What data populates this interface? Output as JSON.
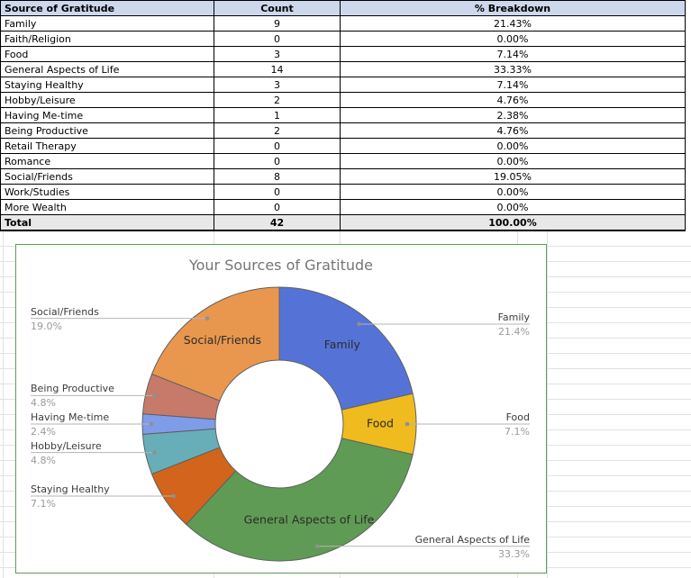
{
  "table": {
    "headers": [
      "Source of Gratitude",
      "Count",
      "% Breakdown"
    ],
    "rows": [
      [
        "Family",
        "9",
        "21.43%"
      ],
      [
        "Faith/Religion",
        "0",
        "0.00%"
      ],
      [
        "Food",
        "3",
        "7.14%"
      ],
      [
        "General Aspects of Life",
        "14",
        "33.33%"
      ],
      [
        "Staying Healthy",
        "3",
        "7.14%"
      ],
      [
        "Hobby/Leisure",
        "2",
        "4.76%"
      ],
      [
        "Having Me-time",
        "1",
        "2.38%"
      ],
      [
        "Being Productive",
        "2",
        "4.76%"
      ],
      [
        "Retail Therapy",
        "0",
        "0.00%"
      ],
      [
        "Romance",
        "0",
        "0.00%"
      ],
      [
        "Social/Friends",
        "8",
        "19.05%"
      ],
      [
        "Work/Studies",
        "0",
        "0.00%"
      ],
      [
        "More Wealth",
        "0",
        "0.00%"
      ]
    ],
    "total_row": [
      "Total",
      "42",
      "100.00%"
    ]
  },
  "chart_data": {
    "type": "pie",
    "subtype": "donut",
    "title": "Your Sources of Gratitude",
    "total": 42,
    "legend_position": "labeled",
    "slices": [
      {
        "label": "Family",
        "value": 9,
        "pct": "21.4%",
        "color": "#5573d7",
        "label_side": "right",
        "inner_label": true
      },
      {
        "label": "Food",
        "value": 3,
        "pct": "7.1%",
        "color": "#efbb1e",
        "label_side": "right",
        "inner_label": true
      },
      {
        "label": "General Aspects of Life",
        "value": 14,
        "pct": "33.3%",
        "color": "#5f9b54",
        "label_side": "right",
        "inner_label": true
      },
      {
        "label": "Staying Healthy",
        "value": 3,
        "pct": "7.1%",
        "color": "#d2641c",
        "label_side": "left",
        "inner_label": false
      },
      {
        "label": "Hobby/Leisure",
        "value": 2,
        "pct": "4.8%",
        "color": "#68aeb8",
        "label_side": "left",
        "inner_label": false
      },
      {
        "label": "Having Me-time",
        "value": 1,
        "pct": "2.4%",
        "color": "#7e9ce8",
        "label_side": "left",
        "inner_label": false
      },
      {
        "label": "Being Productive",
        "value": 2,
        "pct": "4.8%",
        "color": "#c87a6a",
        "label_side": "left",
        "inner_label": false
      },
      {
        "label": "Social/Friends",
        "value": 8,
        "pct": "19.0%",
        "color": "#e9974f",
        "label_side": "left",
        "inner_label": true
      }
    ]
  },
  "colors": {
    "header_bg": "#cdd8ec",
    "total_bg": "#e8e8e8",
    "chart_border": "#5a9d5a",
    "grid": "#e2e2e2",
    "slice_stroke": "#5f5f5f",
    "title": "#757575",
    "label_text": "#3b3b3b",
    "label_pct": "#9a9a9a",
    "leader": "#b5b5b5",
    "dot": "#8f8f8f",
    "inner_label_text": "#2b2b2b"
  }
}
